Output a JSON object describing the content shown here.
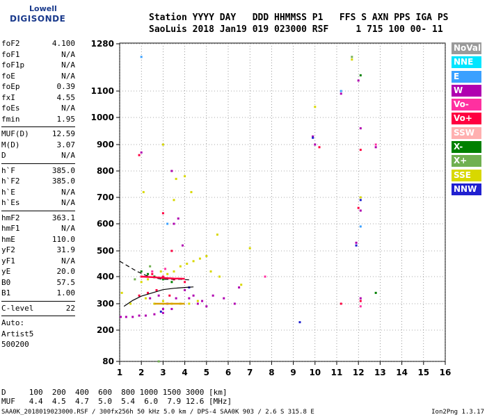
{
  "logo": {
    "line1": "Lowell",
    "line2": "DIGISONDE"
  },
  "header": {
    "row1": "Station YYYY DAY   DDD HHMMSS P1   FFS S AXN PPS IGA PS",
    "row2": "SaoLuis 2018 Jan19 019 023000 RSF     1 715 100 00- 11"
  },
  "params_group1": [
    {
      "k": "foF2",
      "v": "4.100"
    },
    {
      "k": "foF1",
      "v": "N/A"
    },
    {
      "k": "foF1p",
      "v": "N/A"
    },
    {
      "k": "foE",
      "v": "N/A"
    },
    {
      "k": "foEp",
      "v": "0.39"
    },
    {
      "k": "fxI",
      "v": "4.55"
    },
    {
      "k": "foEs",
      "v": "N/A"
    },
    {
      "k": "fmin",
      "v": "1.95"
    }
  ],
  "params_group2": [
    {
      "k": "MUF(D)",
      "v": "12.59"
    },
    {
      "k": "M(D)",
      "v": "3.07"
    },
    {
      "k": "D",
      "v": "N/A"
    }
  ],
  "params_group3": [
    {
      "k": "h`F",
      "v": "385.0"
    },
    {
      "k": "h`F2",
      "v": "385.0"
    },
    {
      "k": "h`E",
      "v": "N/A"
    },
    {
      "k": "h`Es",
      "v": "N/A"
    }
  ],
  "params_group4": [
    {
      "k": "hmF2",
      "v": "363.1"
    },
    {
      "k": "hmF1",
      "v": "N/A"
    },
    {
      "k": "hmE",
      "v": "110.0"
    },
    {
      "k": "yF2",
      "v": "31.9"
    },
    {
      "k": "yF1",
      "v": "N/A"
    },
    {
      "k": "yE",
      "v": "20.0"
    },
    {
      "k": "B0",
      "v": "57.5"
    },
    {
      "k": "B1",
      "v": "1.00"
    }
  ],
  "clevel": {
    "k": "C-level",
    "v": "22"
  },
  "auto_lines": [
    "Auto:",
    "Artist5",
    "500200"
  ],
  "legend": [
    {
      "label": "NoVal",
      "color": "#9a9a9a"
    },
    {
      "label": "NNE",
      "color": "#00e5ff"
    },
    {
      "label": "E",
      "color": "#3aa0ff"
    },
    {
      "label": "W",
      "color": "#b000b0"
    },
    {
      "label": "Vo-",
      "color": "#ff30a0"
    },
    {
      "label": "Vo+",
      "color": "#ff0040"
    },
    {
      "label": "SSW",
      "color": "#ffb0b0"
    },
    {
      "label": "X-",
      "color": "#008000"
    },
    {
      "label": "X+",
      "color": "#70b050"
    },
    {
      "label": "SSE",
      "color": "#d8d800"
    },
    {
      "label": "NNW",
      "color": "#2020d0"
    }
  ],
  "bottom": {
    "d_line": "D     100  200  400  600  800 1000 1500 3000 [km]",
    "muf_line": "MUF   4.4  4.5  4.7  5.0  5.4  6.0  7.9 12.6 [MHz]"
  },
  "footer": "SAA0K_2018019023000.RSF / 300fx256h 50 kHz 5.0 km / DPS-4 SAA0K 903 / 2.6 S 315.8 E",
  "version": "Ion2Png 1.3.17",
  "chart_data": {
    "type": "scatter",
    "x_ticks": [
      "1",
      "2",
      "3",
      "4",
      "5",
      "6",
      "7",
      "8",
      "9",
      "10",
      "11",
      "12",
      "13",
      "14",
      "15",
      "16"
    ],
    "y_ticks": [
      "80",
      "200",
      "300",
      "400",
      "500",
      "600",
      "700",
      "800",
      "900",
      "1000",
      "1100",
      "1280"
    ],
    "xlim": [
      1,
      16
    ],
    "ylim": [
      80,
      1280
    ],
    "y_scale": "nonlinear",
    "grid": "dotted",
    "series": [
      {
        "color": "#b000b0",
        "points": [
          [
            1.05,
            250
          ],
          [
            1.3,
            250
          ],
          [
            1.6,
            250
          ],
          [
            1.9,
            255
          ],
          [
            2.2,
            255
          ],
          [
            2.6,
            260
          ],
          [
            3.0,
            265
          ],
          [
            3.4,
            280
          ],
          [
            3.8,
            300
          ],
          [
            4.2,
            320
          ],
          [
            4.6,
            300
          ],
          [
            5.0,
            290
          ],
          [
            5.3,
            330
          ],
          [
            5.8,
            320
          ],
          [
            2.4,
            320
          ],
          [
            2.8,
            330
          ],
          [
            3.2,
            300
          ],
          [
            3.6,
            320
          ],
          [
            4.0,
            350
          ],
          [
            4.4,
            330
          ],
          [
            4.8,
            310
          ],
          [
            3.9,
            520
          ],
          [
            3.5,
            600
          ],
          [
            3.4,
            800
          ],
          [
            3.0,
            280
          ],
          [
            2.0,
            870
          ],
          [
            3.7,
            620
          ],
          [
            10.0,
            900
          ],
          [
            11.2,
            1090
          ],
          [
            12.1,
            960
          ],
          [
            12.1,
            650
          ],
          [
            12.1,
            320
          ],
          [
            12.8,
            890
          ],
          [
            9.9,
            930
          ],
          [
            11.9,
            530
          ],
          [
            12.0,
            1140
          ],
          [
            6.3,
            300
          ],
          [
            6.5,
            360
          ]
        ]
      },
      {
        "color": "#d8d800",
        "points": [
          [
            2.0,
            380
          ],
          [
            2.3,
            390
          ],
          [
            2.6,
            400
          ],
          [
            2.9,
            420
          ],
          [
            3.2,
            410
          ],
          [
            3.5,
            420
          ],
          [
            3.8,
            440
          ],
          [
            4.1,
            450
          ],
          [
            4.4,
            460
          ],
          [
            4.7,
            470
          ],
          [
            5.0,
            480
          ],
          [
            2.2,
            320
          ],
          [
            2.6,
            300
          ],
          [
            3.0,
            310
          ],
          [
            3.4,
            300
          ],
          [
            3.8,
            300
          ],
          [
            4.2,
            300
          ],
          [
            4.6,
            310
          ],
          [
            5.2,
            420
          ],
          [
            5.6,
            400
          ],
          [
            3.6,
            770
          ],
          [
            3.5,
            690
          ],
          [
            2.1,
            720
          ],
          [
            3.0,
            900
          ],
          [
            4.0,
            780
          ],
          [
            4.3,
            720
          ],
          [
            10.0,
            1040
          ],
          [
            11.7,
            1220
          ],
          [
            12.1,
            700
          ],
          [
            1.5,
            300
          ],
          [
            1.1,
            340
          ],
          [
            6.6,
            370
          ],
          [
            7.0,
            510
          ],
          [
            5.5,
            560
          ]
        ]
      },
      {
        "color": "#ff0040",
        "points": [
          [
            2.0,
            400
          ],
          [
            2.5,
            410
          ],
          [
            3.0,
            400
          ],
          [
            3.5,
            390
          ],
          [
            4.0,
            380
          ],
          [
            2.7,
            350
          ],
          [
            3.3,
            330
          ],
          [
            1.9,
            330
          ],
          [
            2.3,
            340
          ],
          [
            11.2,
            300
          ],
          [
            12.1,
            310
          ],
          [
            12.1,
            880
          ],
          [
            12.0,
            660
          ],
          [
            10.2,
            890
          ],
          [
            3.4,
            500
          ],
          [
            3.0,
            640
          ],
          [
            1.9,
            860
          ]
        ]
      },
      {
        "color": "#008000",
        "points": [
          [
            2.0,
            420
          ],
          [
            2.3,
            410
          ],
          [
            2.6,
            400
          ],
          [
            3.0,
            390
          ],
          [
            3.4,
            380
          ],
          [
            12.8,
            340
          ],
          [
            12.1,
            1160
          ]
        ]
      },
      {
        "color": "#3aa0ff",
        "points": [
          [
            2.0,
            1230
          ],
          [
            11.2,
            1100
          ],
          [
            12.1,
            590
          ],
          [
            3.2,
            600
          ]
        ]
      },
      {
        "color": "#2020d0",
        "points": [
          [
            9.3,
            230
          ],
          [
            11.9,
            520
          ],
          [
            12.1,
            690
          ],
          [
            2.9,
            270
          ],
          [
            4.2,
            360
          ],
          [
            9.9,
            925
          ]
        ]
      },
      {
        "color": "#ff30a0",
        "points": [
          [
            12.1,
            290
          ],
          [
            7.7,
            400
          ],
          [
            12.8,
            900
          ],
          [
            2.5,
            420
          ],
          [
            3.1,
            430
          ]
        ]
      },
      {
        "color": "#70b050",
        "points": [
          [
            2.8,
            80
          ],
          [
            11.7,
            1230
          ],
          [
            1.7,
            390
          ],
          [
            2.4,
            440
          ]
        ]
      }
    ],
    "curves": [
      {
        "color": "#000000",
        "dash": false,
        "points": [
          [
            1.2,
            290
          ],
          [
            1.6,
            312
          ],
          [
            2.0,
            328
          ],
          [
            2.5,
            340
          ],
          [
            3.0,
            352
          ],
          [
            3.5,
            357
          ],
          [
            4.0,
            360
          ],
          [
            4.4,
            362
          ]
        ]
      },
      {
        "color": "#000000",
        "dash": true,
        "points": [
          [
            1.0,
            460
          ],
          [
            1.4,
            440
          ],
          [
            1.8,
            420
          ],
          [
            2.2,
            405
          ],
          [
            2.6,
            395
          ],
          [
            3.0,
            390
          ],
          [
            3.4,
            390
          ],
          [
            3.8,
            390
          ],
          [
            4.2,
            388
          ]
        ]
      },
      {
        "color": "#d8a000",
        "dash": false,
        "points": [
          [
            2.6,
            300
          ],
          [
            3.0,
            300
          ],
          [
            3.5,
            300
          ],
          [
            4.0,
            300
          ]
        ]
      },
      {
        "color": "#ff0040",
        "dash": false,
        "points": [
          [
            2.0,
            400
          ],
          [
            2.5,
            398
          ],
          [
            3.0,
            395
          ],
          [
            3.5,
            393
          ],
          [
            4.0,
            392
          ]
        ]
      }
    ]
  }
}
